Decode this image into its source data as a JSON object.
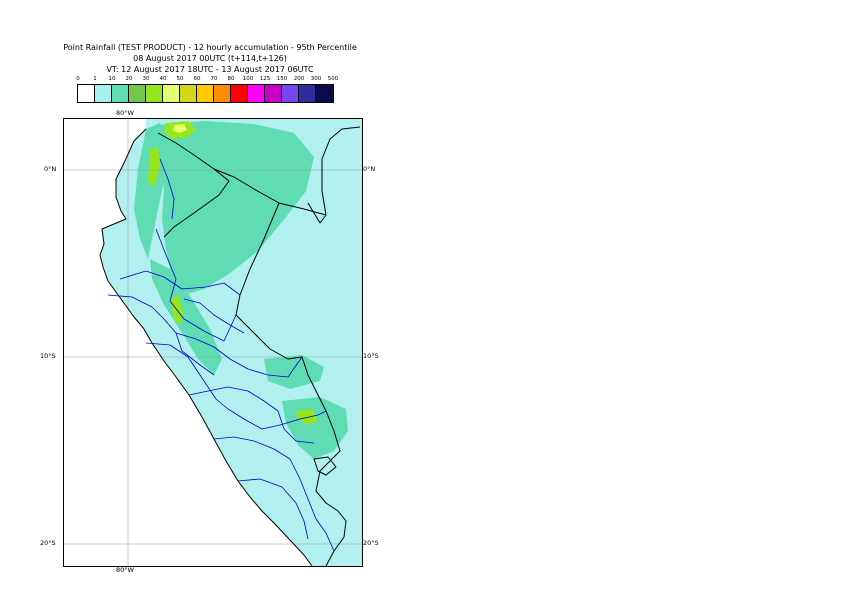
{
  "title": {
    "line1": "Point Rainfall (TEST PRODUCT) - 12 hourly accumulation - 95th Percentile",
    "line2": "08 August 2017 00UTC (t+114,t+126)",
    "line3": "VT: 12 August 2017 18UTC - 13 August 2017 06UTC"
  },
  "legend": {
    "thresholds": [
      "0",
      "1",
      "10",
      "20",
      "30",
      "40",
      "50",
      "60",
      "70",
      "80",
      "100",
      "125",
      "150",
      "200",
      "300",
      "500"
    ],
    "colors": [
      "#ffffff",
      "#a7f0f0",
      "#5fdcb4",
      "#73c84b",
      "#96e61e",
      "#e6ff6e",
      "#d2d71e",
      "#ffc800",
      "#ff8c00",
      "#ff0000",
      "#ff00ff",
      "#c800c8",
      "#7846f0",
      "#2d2d9b",
      "#0a0a4b"
    ]
  },
  "map": {
    "land_color": "#b2f0f0",
    "moderate_color": "#5fdcb4",
    "heavy_color": "#96e61e",
    "border_color": "#000000",
    "admin_color": "#0000cc",
    "lon_labels": {
      "top": "80°W",
      "bottom": "80°W"
    },
    "lat_labels": {
      "n0": {
        "left": "0°N",
        "right": "0°N"
      },
      "s10": {
        "left": "10°S",
        "right": "10°S"
      },
      "s20": {
        "left": "20°S",
        "right": "20°S"
      }
    }
  }
}
